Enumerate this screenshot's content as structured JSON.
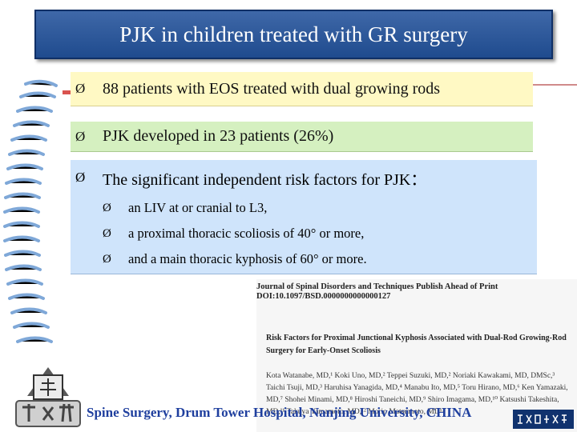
{
  "title": "PJK in children treated with GR surgery",
  "bullets": [
    {
      "text": "88 patients with EOS treated with dual growing rods",
      "color": "#fff9c4"
    },
    {
      "text": "PJK developed in 23 patients (26%)",
      "color": "#d5f0c0"
    },
    {
      "text": "The significant independent risk factors for PJK：",
      "color": "#cfe4fb",
      "subitems": [
        {
          "text": "an LIV at or cranial to L3,"
        },
        {
          "text": "a proximal thoracic scoliosis of 40° or more,"
        },
        {
          "text": "and a main thoracic kyphosis of 60° or more."
        }
      ]
    }
  ],
  "arrow_glyph": "Ø",
  "paper": {
    "journal": "Journal of Spinal Disorders and Techniques Publish Ahead of Print",
    "doi": "DOI:10.1097/BSD.0000000000000127",
    "title": "Risk Factors for Proximal Junctional Kyphosis Associated with Dual-Rod Growing-Rod Surgery for Early-Onset Scoliosis",
    "authors": "Kota Watanabe, MD,¹ Koki Uno, MD,² Teppei Suzuki, MD,² Noriaki Kawakami, MD, DMSc,³ Taichi Tsuji, MD,³ Haruhisa Yanagida, MD,⁴ Manabu Ito, MD,⁵ Toru Hirano, MD,⁶ Ken Yamazaki, MD,⁷ Shohei Minami, MD,⁸ Hiroshi Taneichi, MD,⁹ Shiro Imagama, MD,¹⁰ Katsushi Takeshita, MD,¹¹ Takuya Yamamoto, MD,¹² Morio Matsumoto, MD¹³"
  },
  "footer": "Spine Surgery, Drum Tower Hospital, Nanjing University, CHINA",
  "colors": {
    "title_bg": "#2a56a0",
    "footer_text": "#1f3f9e"
  }
}
